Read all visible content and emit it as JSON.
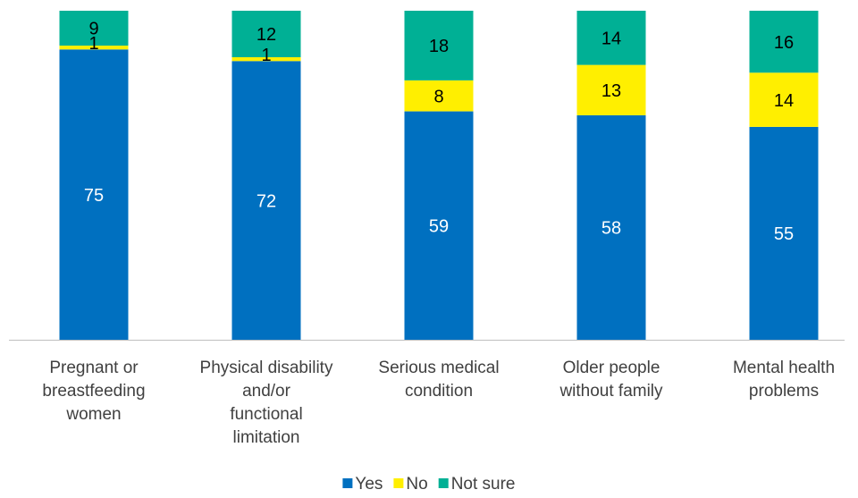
{
  "chart_data": {
    "type": "bar",
    "stacked": true,
    "categories": [
      [
        "Pregnant or",
        "breastfeeding",
        "women"
      ],
      [
        "Physical disability",
        "and/or",
        "functional",
        "limitation"
      ],
      [
        "Serious medical",
        "condition"
      ],
      [
        "Older people",
        "without family"
      ],
      [
        "Mental health",
        "problems"
      ]
    ],
    "series": [
      {
        "name": "Yes",
        "color": "#0070C0",
        "label_color": "#ffffff",
        "values": [
          75,
          72,
          59,
          58,
          55
        ]
      },
      {
        "name": "No",
        "color": "#FFEF00",
        "label_color": "#000000",
        "values": [
          1,
          1,
          8,
          13,
          14
        ]
      },
      {
        "name": "Not sure",
        "color": "#00B095",
        "label_color": "#000000",
        "values": [
          9,
          12,
          18,
          14,
          16
        ]
      }
    ],
    "ylim": [
      0,
      85
    ],
    "grid": false,
    "legend": "bottom",
    "title": "",
    "xlabel": "",
    "ylabel": ""
  }
}
